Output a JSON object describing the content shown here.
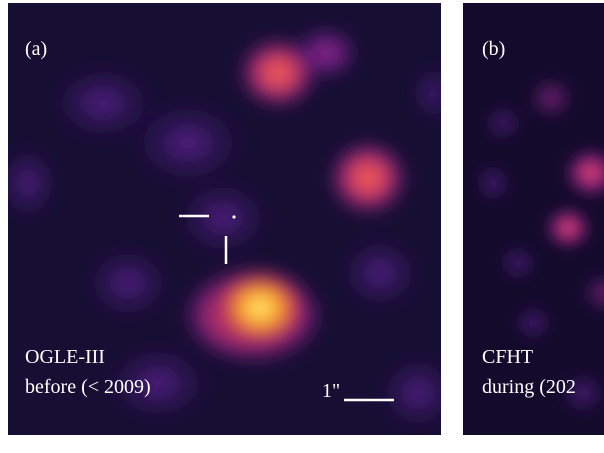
{
  "panels": [
    {
      "panel_label": "(a)",
      "survey": "OGLE-III",
      "epoch": "before (< 2009)",
      "scale_bar_label": "1\""
    },
    {
      "panel_label": "(b)",
      "survey": "CFHT",
      "epoch": "during (202"
    }
  ],
  "colors": {
    "background": "#140d2c",
    "colormap": "inferno-magma",
    "annotation": "#ffffff"
  }
}
